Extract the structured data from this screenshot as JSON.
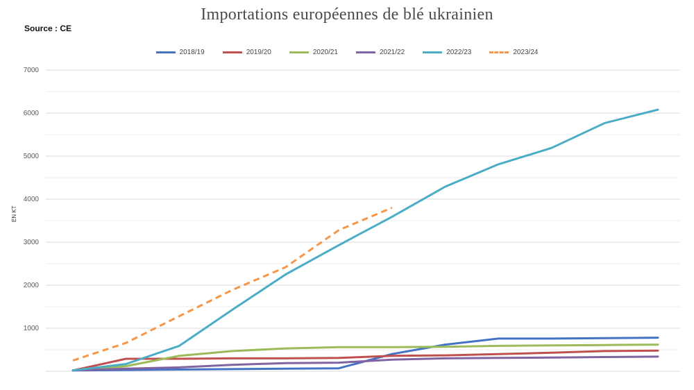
{
  "chart_data": {
    "type": "line",
    "title": "Importations européennes de blé ukrainien",
    "subtitle": "Source : CE",
    "ylabel": "EN KT",
    "xlabel": "",
    "ylim": [
      0,
      7000
    ],
    "yticks": [
      "1000",
      "2000",
      "3000",
      "4000",
      "5000",
      "6000",
      "7000"
    ],
    "yticks_values": [
      1000,
      2000,
      3000,
      4000,
      5000,
      6000,
      7000
    ],
    "grid": true,
    "legend_position": "top",
    "x": [
      1,
      2,
      3,
      4,
      5,
      6,
      7,
      8,
      9,
      10,
      11,
      12
    ],
    "series": [
      {
        "name": "2018/19",
        "color": "#4472c4",
        "dashed": false,
        "values": [
          20,
          30,
          40,
          50,
          60,
          70,
          400,
          620,
          760,
          760,
          770,
          780
        ]
      },
      {
        "name": "2019/20",
        "color": "#c0504d",
        "dashed": false,
        "values": [
          20,
          290,
          290,
          300,
          300,
          310,
          360,
          370,
          400,
          430,
          470,
          480
        ]
      },
      {
        "name": "2020/21",
        "color": "#9bbb59",
        "dashed": false,
        "values": [
          20,
          120,
          360,
          470,
          530,
          560,
          560,
          570,
          590,
          600,
          610,
          620
        ]
      },
      {
        "name": "2021/22",
        "color": "#8064a2",
        "dashed": false,
        "values": [
          20,
          60,
          90,
          150,
          190,
          200,
          270,
          300,
          310,
          320,
          330,
          340
        ]
      },
      {
        "name": "2022/23",
        "color": "#4bacc6",
        "dashed": false,
        "values": [
          20,
          170,
          590,
          1430,
          2250,
          2930,
          3590,
          4290,
          4810,
          5190,
          5770,
          6080
        ]
      },
      {
        "name": "2023/24",
        "color": "#f79646",
        "dashed": true,
        "values": [
          250,
          660,
          1280,
          1890,
          2420,
          3280,
          3800,
          null,
          null,
          null,
          null,
          null
        ]
      }
    ]
  }
}
